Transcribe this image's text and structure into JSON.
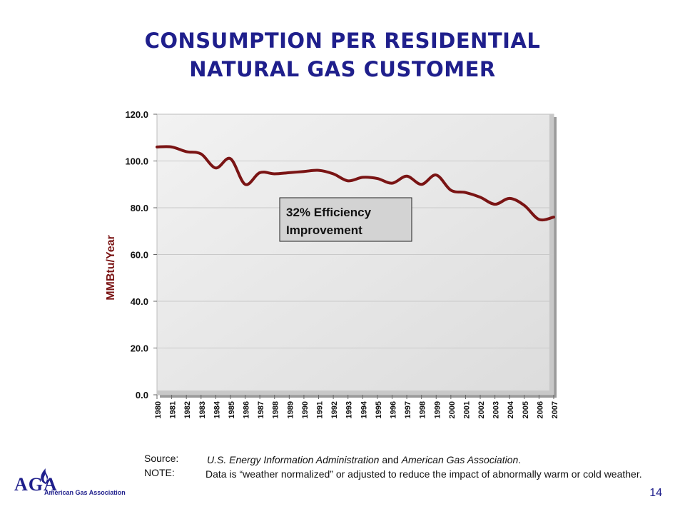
{
  "title_line1": "CONSUMPTION PER RESIDENTIAL",
  "title_line2": "NATURAL GAS CUSTOMER",
  "chart_data": {
    "type": "line",
    "ylabel": "MMBtu/Year",
    "ylim": [
      0,
      120
    ],
    "yticks": [
      "0.0",
      "20.0",
      "40.0",
      "60.0",
      "80.0",
      "100.0",
      "120.0"
    ],
    "categories": [
      "1980",
      "1981",
      "1982",
      "1983",
      "1984",
      "1985",
      "1986",
      "1987",
      "1988",
      "1989",
      "1990",
      "1991",
      "1992",
      "1993",
      "1994",
      "1995",
      "1996",
      "1997",
      "1998",
      "1999",
      "2000",
      "2001",
      "2002",
      "2003",
      "2004",
      "2005",
      "2006",
      "2007"
    ],
    "series": [
      {
        "values": [
          106,
          106,
          104,
          103,
          97,
          101,
          90,
          95,
          94.5,
          95,
          95.5,
          96,
          94.5,
          91.5,
          93,
          92.5,
          90.5,
          93.5,
          90,
          94,
          87.5,
          86.5,
          84.5,
          81.5,
          84,
          81,
          75,
          76
        ],
        "color": "#7a1414"
      }
    ],
    "annotation": "32% Efficiency\nImprovement",
    "grid": true,
    "plot_bg": "#e6e6e6"
  },
  "source": {
    "label": "Source:",
    "agency": "U.S. Energy Information Administration",
    "and": " and ",
    "association": "American Gas Association",
    "end": "."
  },
  "note": {
    "label": "NOTE:",
    "text": " Data is “weather normalized” or adjusted to reduce the impact of abnormally warm or cold weather."
  },
  "logo": {
    "wordmark": "AGA",
    "name": "American Gas Association",
    "icon": "flame-icon"
  },
  "page_number": "14"
}
